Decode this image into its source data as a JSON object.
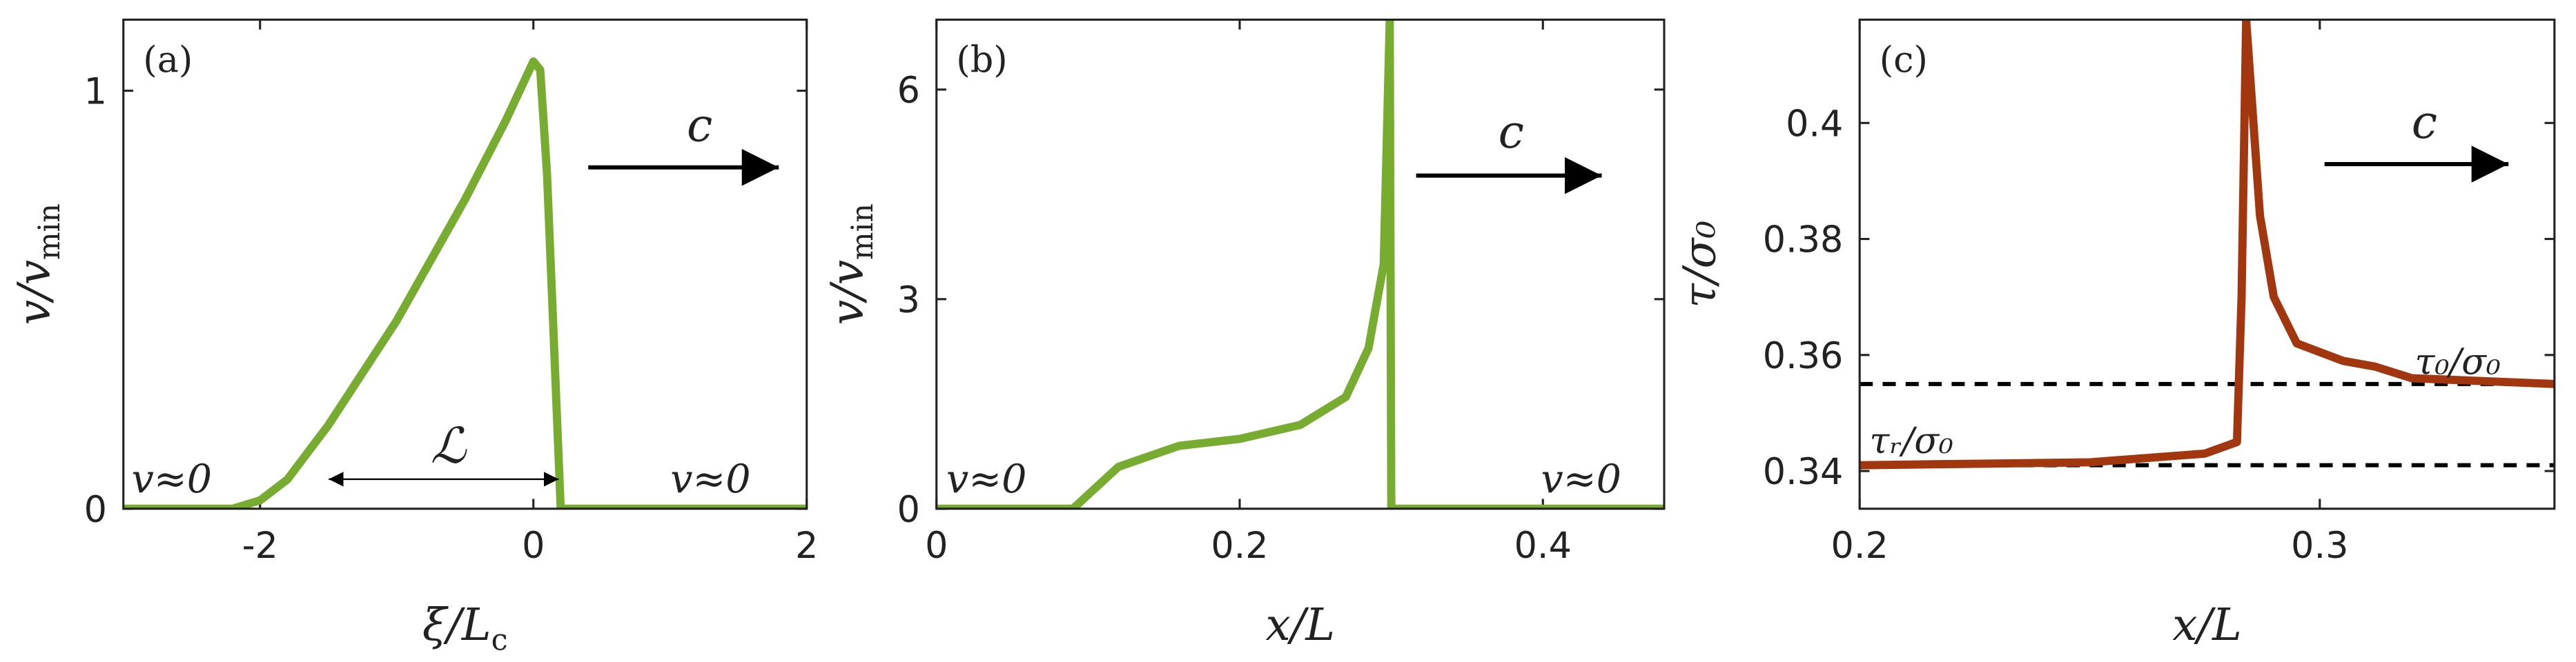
{
  "chart_data": [
    {
      "type": "line",
      "panel_label": "(a)",
      "xlabel": {
        "text": "ξ/L",
        "sub": "c"
      },
      "ylabel": {
        "text": "v/v",
        "sub": "min"
      },
      "xlim": [
        -3,
        2
      ],
      "ylim": [
        0,
        1.17
      ],
      "xticks": [
        -2,
        0,
        2
      ],
      "yticks": [
        0,
        1
      ],
      "x": [
        -3,
        -2.2,
        -2,
        -1.8,
        -1.5,
        -1,
        -0.5,
        -0.2,
        0,
        0.05,
        0.1,
        0.15,
        0.2,
        2
      ],
      "values": [
        0,
        0,
        0.02,
        0.07,
        0.2,
        0.45,
        0.74,
        0.93,
        1.07,
        1.05,
        0.8,
        0.4,
        0,
        0
      ],
      "color": "#77ac30",
      "annotations": [
        "c",
        "v≈0",
        "v≈0",
        "ℒ"
      ]
    },
    {
      "type": "line",
      "panel_label": "(b)",
      "xlabel": {
        "text": "x/L"
      },
      "ylabel": {
        "text": "v/v",
        "sub": "min"
      },
      "xlim": [
        0,
        0.48
      ],
      "ylim": [
        0,
        7
      ],
      "xticks": [
        0,
        0.2,
        0.4
      ],
      "yticks": [
        0,
        3,
        6
      ],
      "x": [
        0,
        0.09,
        0.1,
        0.12,
        0.16,
        0.2,
        0.24,
        0.27,
        0.285,
        0.295,
        0.299,
        0.3,
        0.48
      ],
      "values": [
        0,
        0,
        0.2,
        0.6,
        0.9,
        1.0,
        1.2,
        1.6,
        2.3,
        3.5,
        7,
        0,
        0
      ],
      "color": "#77ac30",
      "annotations": [
        "c",
        "v≈0",
        "v≈0"
      ]
    },
    {
      "type": "line",
      "panel_label": "(c)",
      "xlabel": {
        "text": "x/L"
      },
      "ylabel": {
        "text": "τ/σ₀"
      },
      "xlim": [
        0.2,
        0.351
      ],
      "ylim": [
        0.3335,
        0.4178
      ],
      "xticks": [
        0.2,
        0.3
      ],
      "yticks": [
        0.34,
        0.36,
        0.38,
        0.4
      ],
      "x": [
        0.2,
        0.25,
        0.275,
        0.282,
        0.283,
        0.284,
        0.287,
        0.29,
        0.295,
        0.305,
        0.312,
        0.32,
        0.351
      ],
      "values": [
        0.341,
        0.3415,
        0.343,
        0.345,
        0.37,
        0.4178,
        0.384,
        0.37,
        0.362,
        0.359,
        0.358,
        0.356,
        0.355
      ],
      "color": "#a2370f",
      "hlines": [
        0.355,
        0.341
      ],
      "annotations": [
        "c",
        "τ₀/σ₀",
        "τᵣ/σ₀"
      ]
    }
  ]
}
